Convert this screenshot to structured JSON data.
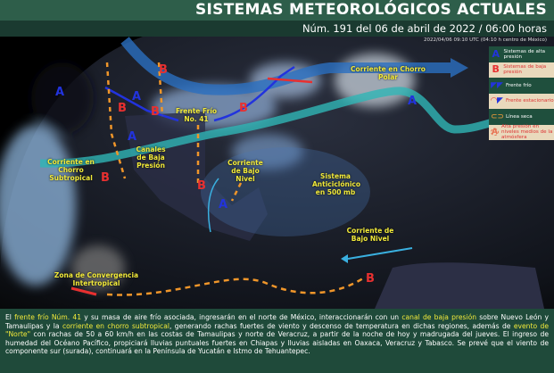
{
  "header": {
    "title": "SISTEMAS METEOROLÓGICOS ACTUALES",
    "subtitle": "Núm. 191 del 06 de abril de 2022 / 06:00 horas"
  },
  "map": {
    "timestamp": "2022/04/06 09:10 UTC (04:10 h centro de México)",
    "labels": {
      "polar_jet": "Corriente en Chorro Polar",
      "cold_front": "Frente Frío No. 41",
      "subtropical_jet": "Corriente en Chorro Subtropical",
      "low_channels": "Canales de Baja Presión",
      "low_level_1": "Corriente de Bajo Nivel",
      "anticyclone": "Sistema Anticiclónico en 500 mb",
      "low_level_2": "Corriente de Bajo Nivel",
      "itcz": "Zona de Convergencia Intertropical"
    },
    "high_symbol": "A",
    "low_symbol": "B",
    "colors": {
      "high": "#2233dd",
      "low": "#e83030",
      "polar_jet": "#2a6fc0",
      "subtropical_jet": "#2fb5b5",
      "dry_line": "#f0962a",
      "label": "#f2ea3a"
    }
  },
  "legend": [
    {
      "icon": "A",
      "label": "Sistemas de alta presión"
    },
    {
      "icon": "B",
      "label": "Sistemas de baja presión"
    },
    {
      "icon": "cold-front",
      "label": "Frente frío"
    },
    {
      "icon": "stationary-front",
      "label": "Frente estacionario"
    },
    {
      "icon": "dry-line",
      "label": "Línea seca"
    },
    {
      "icon": "A",
      "label": "Alta presión en niveles medios de la atmósfera"
    }
  ],
  "description": {
    "p1": "El ",
    "h1": "frente frío Núm. 41",
    "p2": " y su masa de aire frío asociada, ingresarán en el norte de México, interaccionarán con un ",
    "h2": "canal de baja presión",
    "p3": " sobre Nuevo León y Tamaulipas y la ",
    "h3": "corriente en chorro subtropical",
    "p4": ", generando rachas fuertes de viento y descenso de temperatura en dichas regiones, además de ",
    "h4": "evento de \"Norte\"",
    "p5": " con rachas de 50 a 60 km/h en las costas de Tamaulipas y norte de Veracruz, a partir de la noche de hoy y madrugada del jueves. El ingreso de humedad del Océano Pacífico, propiciará lluvias puntuales fuertes en Chiapas y lluvias aisladas en Oaxaca, Veracruz y Tabasco. Se prevé que el viento de componente sur (surada), continuará en la Península de Yucatán e Istmo de Tehuantepec."
  }
}
